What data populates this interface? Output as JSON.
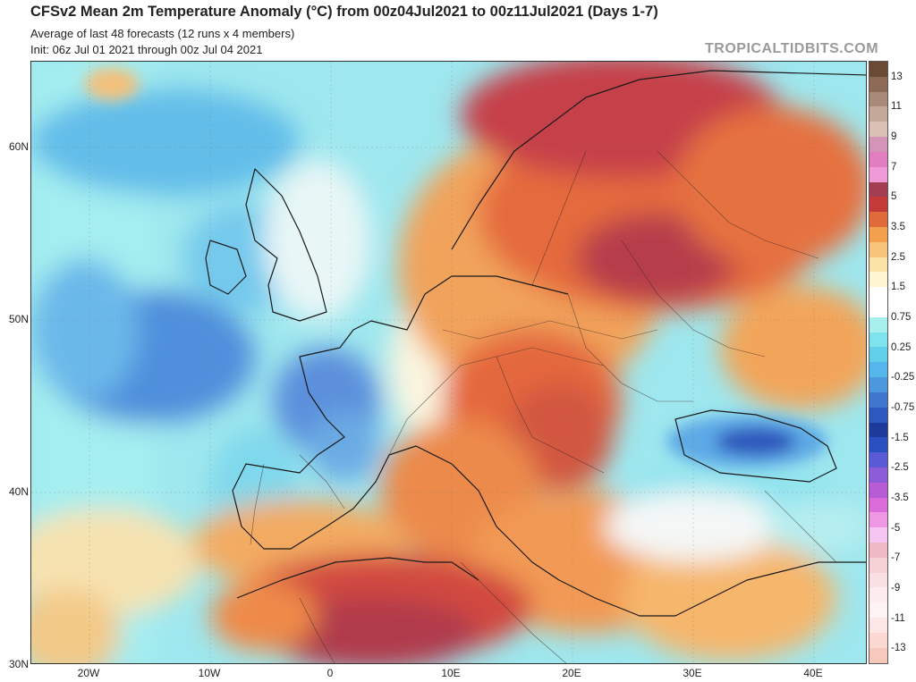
{
  "header": {
    "title": "CFSv2 Mean 2m Temperature Anomaly (°C) from 00z04Jul2021 to 00z11Jul2021 (Days 1-7)",
    "subtitle1": "Average of last 48 forecasts (12 runs x 4 members)",
    "subtitle2": "Init: 06z Jul 01 2021 through 00z Jul 04 2021",
    "brand": "TROPICALTIDBITS.COM"
  },
  "axes": {
    "lat_labels": [
      "60N",
      "50N",
      "40N",
      "30N"
    ],
    "lon_labels": [
      "20W",
      "10W",
      "0",
      "10E",
      "20E",
      "30E",
      "40E"
    ]
  },
  "colorbar": {
    "labels": [
      "13",
      "11",
      "9",
      "7",
      "5",
      "3.5",
      "2.5",
      "1.5",
      "0.75",
      "0.25",
      "-0.25",
      "-0.75",
      "-1.5",
      "-2.5",
      "-3.5",
      "-5",
      "-7",
      "-9",
      "-11",
      "-13"
    ],
    "colors": [
      "#6b4a34",
      "#8c6a55",
      "#a88a78",
      "#c4a99b",
      "#dbc0b5",
      "#d494b8",
      "#e07ec0",
      "#f09ad8",
      "#a33d52",
      "#c43a38",
      "#e06a3a",
      "#f2a04e",
      "#f8c37a",
      "#fbe3a8",
      "#fdf6d0",
      "#ffffff",
      "#ffffff",
      "#a8f0ee",
      "#7ee3ec",
      "#62cfe9",
      "#54b6ea",
      "#4c97de",
      "#3f77cf",
      "#2d58bd",
      "#1c3a9a",
      "#2a4fc0",
      "#5a59d6",
      "#8b5bd8",
      "#b85cd6",
      "#d96cd8",
      "#ee98e4",
      "#f6c4f0",
      "#f0b9c6",
      "#f6d2d6",
      "#f9e0e2",
      "#fcecee",
      "#fdf3f3",
      "#fde6e6",
      "#fbd9d2",
      "#f7c8bc"
    ]
  }
}
